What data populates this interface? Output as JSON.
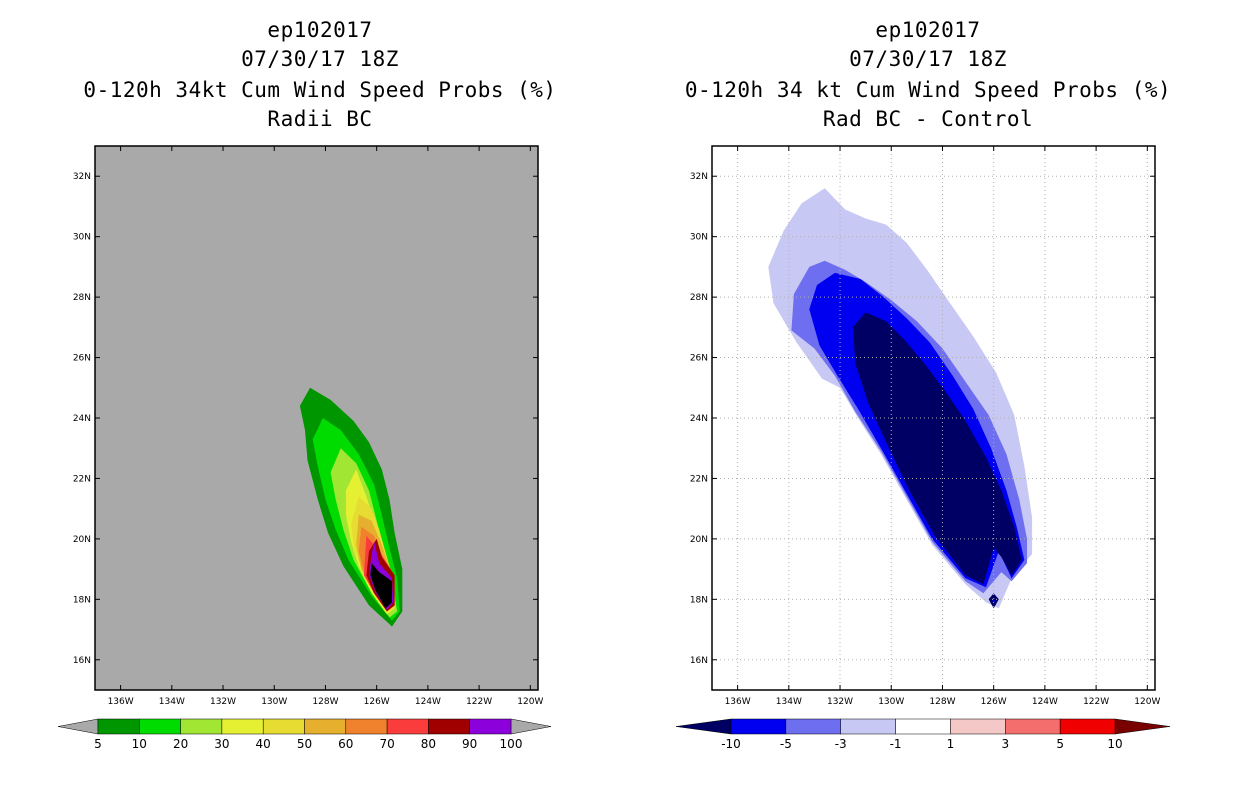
{
  "left_panel": {
    "title_line1": "ep102017",
    "title_line2": "07/30/17 18Z",
    "title_line3": "0-120h 34kt Cum Wind Speed Probs (%)",
    "title_line4": "Radii BC"
  },
  "right_panel": {
    "title_line1": "ep102017",
    "title_line2": "07/30/17 18Z",
    "title_line3": "0-120h 34 kt Cum Wind Speed Probs (%)",
    "title_line4": "Rad BC - Control"
  },
  "colors": {
    "map_bg_left": "#a9a9a9",
    "prob_colors": [
      "#009600",
      "#00dc00",
      "#a0e632",
      "#e6f032",
      "#e6dc32",
      "#e6af2d",
      "#f0822d",
      "#fa3c3c",
      "#a00000",
      "#8c00dc"
    ],
    "diff_colors": [
      "#000064",
      "#0000f0",
      "#6e6ef0",
      "#c8c8f5",
      "#ffffff",
      "#f5c8c8",
      "#f56e6e",
      "#f00000",
      "#780000"
    ]
  },
  "chart_data": [
    {
      "type": "heatmap",
      "title": "0-120h 34kt Cum Wind Speed Probs (%)",
      "subtitle": "Radii BC",
      "x_ticks": [
        "136W",
        "134W",
        "132W",
        "130W",
        "128W",
        "126W",
        "124W",
        "122W",
        "120W"
      ],
      "y_ticks": [
        "32N",
        "30N",
        "28N",
        "26N",
        "24N",
        "22N",
        "20N",
        "18N",
        "16N"
      ],
      "xlim": [
        -137,
        -119.7
      ],
      "ylim": [
        15,
        33
      ],
      "grid": false,
      "colorbar_labels": [
        "5",
        "10",
        "20",
        "30",
        "40",
        "50",
        "60",
        "70",
        "80",
        "90",
        "100"
      ],
      "levels": [
        5,
        10,
        20,
        30,
        40,
        50,
        60,
        70,
        80,
        90,
        100
      ],
      "contours": [
        {
          "level": 5,
          "points": [
            [
              -128.6,
              25.0
            ],
            [
              -127.8,
              24.6
            ],
            [
              -126.9,
              23.9
            ],
            [
              -126.3,
              23.2
            ],
            [
              -125.8,
              22.3
            ],
            [
              -125.5,
              21.3
            ],
            [
              -125.3,
              20.2
            ],
            [
              -125.0,
              19.0
            ],
            [
              -125.0,
              17.6
            ],
            [
              -125.4,
              17.1
            ],
            [
              -126.3,
              17.8
            ],
            [
              -127.3,
              19.1
            ],
            [
              -127.9,
              20.2
            ],
            [
              -128.3,
              21.3
            ],
            [
              -128.7,
              22.6
            ],
            [
              -128.8,
              23.6
            ],
            [
              -129.0,
              24.4
            ]
          ]
        },
        {
          "level": 10,
          "points": [
            [
              -128.1,
              24.0
            ],
            [
              -127.4,
              23.6
            ],
            [
              -126.7,
              22.8
            ],
            [
              -126.1,
              21.8
            ],
            [
              -125.8,
              20.8
            ],
            [
              -125.5,
              19.7
            ],
            [
              -125.2,
              18.7
            ],
            [
              -125.1,
              17.6
            ],
            [
              -125.4,
              17.3
            ],
            [
              -126.2,
              18.1
            ],
            [
              -127.1,
              19.3
            ],
            [
              -127.6,
              20.3
            ],
            [
              -128.0,
              21.3
            ],
            [
              -128.3,
              22.4
            ],
            [
              -128.5,
              23.3
            ]
          ]
        },
        {
          "level": 20,
          "points": [
            [
              -127.4,
              23.0
            ],
            [
              -126.8,
              22.5
            ],
            [
              -126.3,
              21.6
            ],
            [
              -126.0,
              20.6
            ],
            [
              -125.7,
              19.6
            ],
            [
              -125.4,
              18.6
            ],
            [
              -125.2,
              17.6
            ],
            [
              -125.5,
              17.4
            ],
            [
              -126.2,
              18.2
            ],
            [
              -126.9,
              19.3
            ],
            [
              -127.3,
              20.3
            ],
            [
              -127.6,
              21.3
            ],
            [
              -127.8,
              22.2
            ]
          ]
        },
        {
          "level": 30,
          "points": [
            [
              -126.8,
              22.3
            ],
            [
              -126.4,
              21.4
            ],
            [
              -126.1,
              20.6
            ],
            [
              -125.8,
              19.6
            ],
            [
              -125.5,
              18.6
            ],
            [
              -125.3,
              17.7
            ],
            [
              -125.6,
              17.5
            ],
            [
              -126.2,
              18.2
            ],
            [
              -126.7,
              19.1
            ],
            [
              -127.0,
              19.9
            ],
            [
              -127.2,
              20.8
            ],
            [
              -127.2,
              21.6
            ]
          ]
        },
        {
          "level": 40,
          "points": [
            [
              -126.7,
              21.4
            ],
            [
              -126.2,
              21.0
            ],
            [
              -125.9,
              20.3
            ],
            [
              -125.6,
              19.4
            ],
            [
              -125.3,
              18.5
            ],
            [
              -125.3,
              17.7
            ],
            [
              -125.6,
              17.6
            ],
            [
              -126.1,
              18.2
            ],
            [
              -126.6,
              19.0
            ],
            [
              -126.9,
              19.8
            ],
            [
              -127.0,
              20.5
            ]
          ]
        },
        {
          "level": 50,
          "points": [
            [
              -126.7,
              20.8
            ],
            [
              -126.2,
              20.6
            ],
            [
              -125.8,
              19.8
            ],
            [
              -125.4,
              18.8
            ],
            [
              -125.3,
              17.8
            ],
            [
              -125.6,
              17.6
            ],
            [
              -126.1,
              18.2
            ],
            [
              -126.6,
              19.0
            ],
            [
              -126.8,
              19.8
            ]
          ]
        },
        {
          "level": 60,
          "points": [
            [
              -126.6,
              20.4
            ],
            [
              -126.1,
              20.1
            ],
            [
              -125.7,
              19.3
            ],
            [
              -125.3,
              18.6
            ],
            [
              -125.3,
              17.8
            ],
            [
              -125.6,
              17.6
            ],
            [
              -126.1,
              18.2
            ],
            [
              -126.5,
              18.9
            ],
            [
              -126.7,
              19.6
            ]
          ]
        },
        {
          "level": 70,
          "points": [
            [
              -126.4,
              20.1
            ],
            [
              -125.9,
              19.6
            ],
            [
              -125.3,
              18.8
            ],
            [
              -125.3,
              17.8
            ],
            [
              -125.6,
              17.6
            ],
            [
              -126.1,
              18.2
            ],
            [
              -126.5,
              18.8
            ]
          ]
        },
        {
          "level": 80,
          "points": [
            [
              -126.0,
              20.0
            ],
            [
              -125.8,
              19.4
            ],
            [
              -125.3,
              18.8
            ],
            [
              -125.3,
              17.8
            ],
            [
              -125.6,
              17.6
            ],
            [
              -126.1,
              18.2
            ],
            [
              -126.4,
              18.8
            ],
            [
              -126.3,
              19.6
            ]
          ]
        },
        {
          "level": 90,
          "points": [
            [
              -126.1,
              19.9
            ],
            [
              -125.9,
              19.2
            ],
            [
              -125.4,
              18.7
            ],
            [
              -125.35,
              17.9
            ],
            [
              -125.6,
              17.65
            ],
            [
              -126.05,
              18.25
            ],
            [
              -126.3,
              18.8
            ],
            [
              -126.2,
              19.5
            ]
          ]
        },
        {
          "level": 100,
          "points": [
            [
              -126.2,
              19.2
            ],
            [
              -125.9,
              18.9
            ],
            [
              -125.4,
              18.6
            ],
            [
              -125.4,
              17.9
            ],
            [
              -125.65,
              17.7
            ],
            [
              -126.05,
              18.3
            ],
            [
              -126.25,
              18.8
            ]
          ]
        }
      ]
    },
    {
      "type": "heatmap",
      "title": "0-120h 34 kt Cum Wind Speed Probs (%)",
      "subtitle": "Rad BC - Control",
      "x_ticks": [
        "136W",
        "134W",
        "132W",
        "130W",
        "128W",
        "126W",
        "124W",
        "122W",
        "120W"
      ],
      "y_ticks": [
        "32N",
        "30N",
        "28N",
        "26N",
        "24N",
        "22N",
        "20N",
        "18N",
        "16N"
      ],
      "xlim": [
        -137,
        -119.7
      ],
      "ylim": [
        15,
        33
      ],
      "grid": true,
      "colorbar_labels": [
        "-10",
        "-5",
        "-3",
        "-1",
        "1",
        "3",
        "5",
        "10"
      ],
      "levels": [
        -10,
        -5,
        -3,
        -1,
        1,
        3,
        5,
        10
      ],
      "contours": [
        {
          "level": -1,
          "points": [
            [
              -132.6,
              31.6
            ],
            [
              -131.8,
              30.9
            ],
            [
              -131.0,
              30.6
            ],
            [
              -130.2,
              30.4
            ],
            [
              -129.4,
              29.8
            ],
            [
              -128.6,
              28.9
            ],
            [
              -127.7,
              27.8
            ],
            [
              -126.8,
              26.7
            ],
            [
              -125.9,
              25.5
            ],
            [
              -125.2,
              24.1
            ],
            [
              -124.8,
              22.4
            ],
            [
              -124.5,
              20.7
            ],
            [
              -124.5,
              19.5
            ],
            [
              -125.3,
              18.7
            ],
            [
              -125.8,
              17.7
            ],
            [
              -126.3,
              17.9
            ],
            [
              -127.1,
              18.5
            ],
            [
              -128.4,
              19.8
            ],
            [
              -129.4,
              21.3
            ],
            [
              -130.4,
              22.8
            ],
            [
              -131.3,
              24.0
            ],
            [
              -132.0,
              25.0
            ],
            [
              -132.7,
              25.3
            ],
            [
              -133.7,
              26.5
            ],
            [
              -134.6,
              27.8
            ],
            [
              -134.8,
              29.0
            ],
            [
              -134.2,
              30.2
            ],
            [
              -133.5,
              31.1
            ]
          ]
        },
        {
          "level": -3,
          "points": [
            [
              -132.6,
              29.2
            ],
            [
              -131.8,
              28.9
            ],
            [
              -131.0,
              28.5
            ],
            [
              -130.0,
              27.9
            ],
            [
              -129.0,
              27.2
            ],
            [
              -128.0,
              26.3
            ],
            [
              -127.1,
              25.2
            ],
            [
              -126.2,
              24.1
            ],
            [
              -125.5,
              22.8
            ],
            [
              -125.0,
              21.3
            ],
            [
              -124.7,
              20.0
            ],
            [
              -124.7,
              19.2
            ],
            [
              -125.3,
              18.6
            ],
            [
              -125.7,
              18.9
            ],
            [
              -126.4,
              18.2
            ],
            [
              -127.1,
              18.6
            ],
            [
              -128.4,
              19.9
            ],
            [
              -129.4,
              21.4
            ],
            [
              -130.4,
              22.9
            ],
            [
              -131.4,
              24.2
            ],
            [
              -132.2,
              25.4
            ],
            [
              -133.0,
              26.3
            ],
            [
              -133.9,
              26.9
            ],
            [
              -133.8,
              28.1
            ],
            [
              -133.2,
              29.0
            ]
          ]
        },
        {
          "level": -5,
          "points": [
            [
              -132.2,
              28.8
            ],
            [
              -131.2,
              28.6
            ],
            [
              -130.3,
              28.0
            ],
            [
              -129.4,
              27.3
            ],
            [
              -128.5,
              26.5
            ],
            [
              -127.6,
              25.4
            ],
            [
              -126.8,
              24.3
            ],
            [
              -126.1,
              23.0
            ],
            [
              -125.5,
              21.6
            ],
            [
              -125.1,
              20.4
            ],
            [
              -124.8,
              19.3
            ],
            [
              -125.3,
              18.7
            ],
            [
              -125.8,
              19.6
            ],
            [
              -126.3,
              18.4
            ],
            [
              -127.1,
              18.7
            ],
            [
              -128.4,
              20.0
            ],
            [
              -129.4,
              21.5
            ],
            [
              -130.4,
              23.0
            ],
            [
              -131.3,
              24.3
            ],
            [
              -132.1,
              25.4
            ],
            [
              -132.8,
              26.4
            ],
            [
              -133.2,
              27.6
            ],
            [
              -132.9,
              28.4
            ]
          ]
        },
        {
          "level": -10,
          "points": [
            [
              -131.0,
              27.5
            ],
            [
              -130.2,
              27.2
            ],
            [
              -129.5,
              26.6
            ],
            [
              -128.7,
              25.8
            ],
            [
              -127.9,
              24.9
            ],
            [
              -127.1,
              23.9
            ],
            [
              -126.3,
              22.7
            ],
            [
              -125.7,
              21.6
            ],
            [
              -125.2,
              20.4
            ],
            [
              -124.9,
              19.3
            ],
            [
              -125.3,
              18.8
            ],
            [
              -125.7,
              19.4
            ],
            [
              -126.0,
              19.7
            ],
            [
              -126.4,
              18.5
            ],
            [
              -127.1,
              18.8
            ],
            [
              -128.3,
              20.1
            ],
            [
              -129.3,
              21.6
            ],
            [
              -130.2,
              23.2
            ],
            [
              -130.9,
              24.5
            ],
            [
              -131.4,
              25.8
            ],
            [
              -131.5,
              27.0
            ]
          ]
        },
        {
          "level": -10,
          "points": [
            [
              -126.0,
              18.2
            ],
            [
              -125.8,
              18.0
            ],
            [
              -126.0,
              17.7
            ],
            [
              -126.2,
              18.0
            ]
          ]
        },
        {
          "level": -5,
          "points": [
            [
              -126.0,
              18.05
            ],
            [
              -125.95,
              17.95
            ],
            [
              -126.0,
              17.85
            ],
            [
              -126.05,
              17.95
            ]
          ]
        }
      ]
    }
  ]
}
